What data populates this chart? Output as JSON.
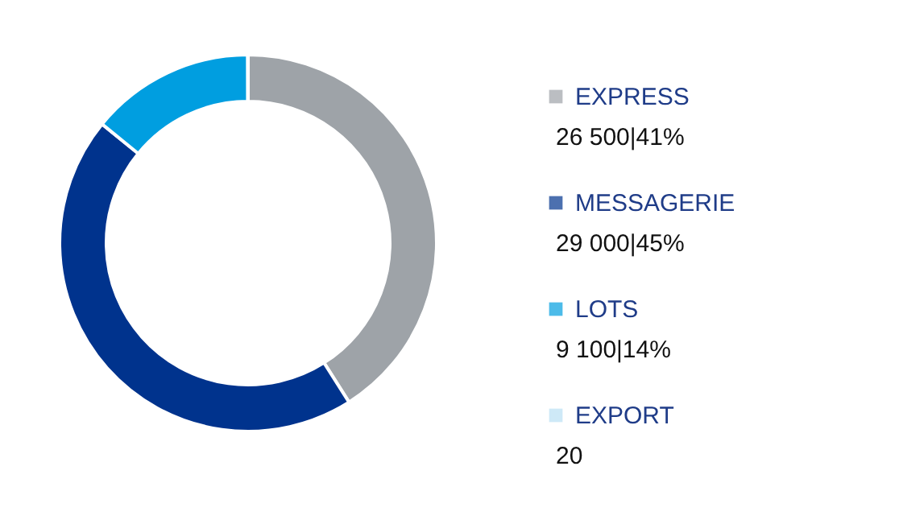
{
  "chart_data": {
    "type": "donut",
    "categories": [
      "EXPRESS",
      "MESSAGERIE",
      "LOTS",
      "EXPORT"
    ],
    "values": [
      26500,
      29000,
      9100,
      20
    ],
    "colors": [
      "#9ea3a8",
      "#00338d",
      "#009ee0",
      "#b9dff4"
    ],
    "value_labels": [
      "26 500|41%",
      "29 000|45%",
      "9 100|14%",
      "20"
    ],
    "legend": "right"
  }
}
